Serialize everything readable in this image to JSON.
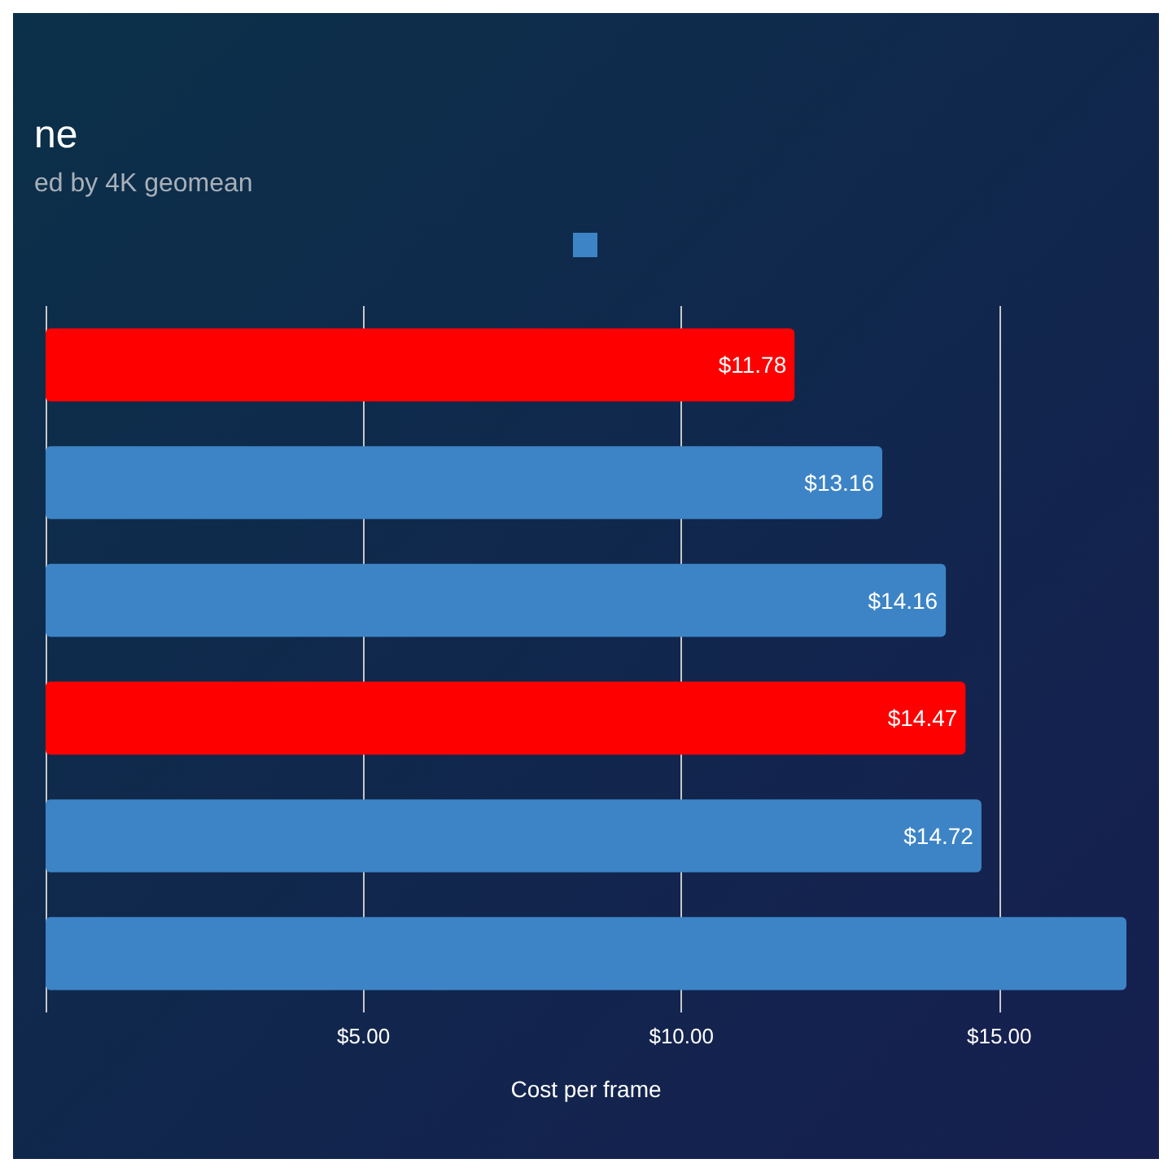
{
  "chart_data": {
    "type": "bar",
    "orientation": "horizontal",
    "title": "ne",
    "subtitle": "ed by 4K geomean",
    "xlabel": "Cost per frame",
    "categories": [
      null,
      null,
      null,
      null,
      null,
      null
    ],
    "values": [
      11.78,
      13.16,
      14.16,
      14.47,
      14.72,
      17
    ],
    "colors": [
      "#ff0000",
      "#3d84c6",
      "#3d84c6",
      "#ff0000",
      "#3d84c6",
      "#3d84c6"
    ],
    "value_labels": [
      "$11.78",
      "$13.16",
      "$14.16",
      "$14.47",
      "$14.72",
      null
    ],
    "xlim": [
      0,
      17
    ],
    "xticks": [
      {
        "value": 0,
        "label": null
      },
      {
        "value": 5,
        "label": "$5.00"
      },
      {
        "value": 10,
        "label": "$10.00"
      },
      {
        "value": 15,
        "label": "$15.00"
      }
    ],
    "grid": "x"
  }
}
